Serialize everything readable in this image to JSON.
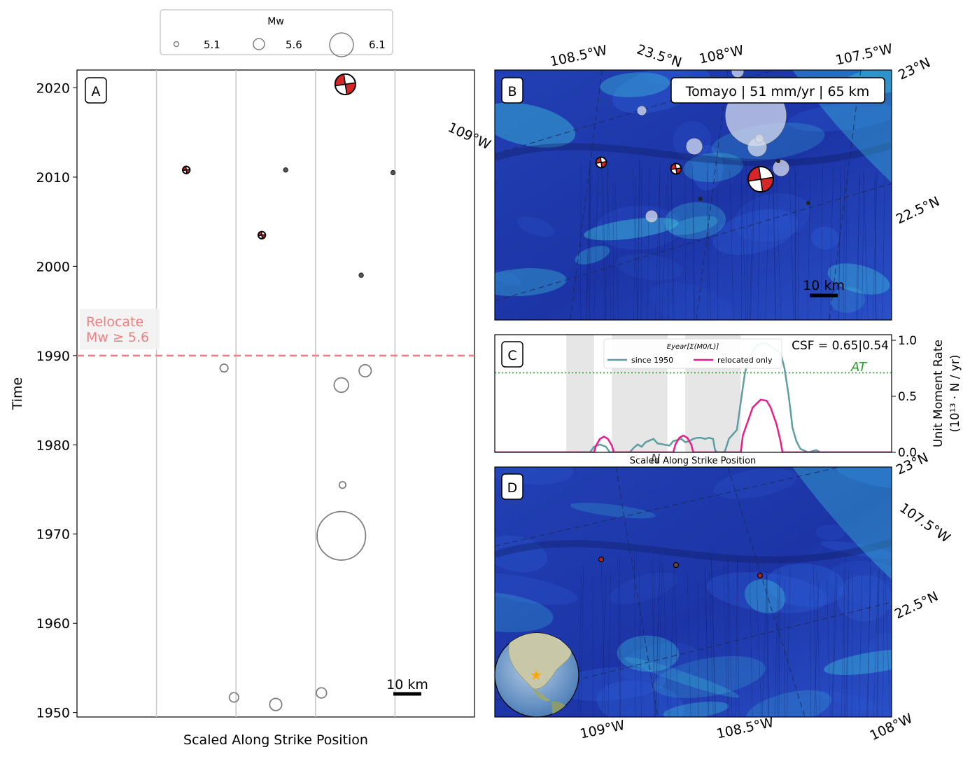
{
  "colors": {
    "relocate_line": "#f08080",
    "since1950": "#5f9ea0",
    "relocated_only": "#e91e8c",
    "threshold": "#2e9a2e",
    "beachball_red": "#d62728",
    "event_gray": "#808080",
    "ocean_deep": "#1a3aa0",
    "ocean_shallow": "#3fd0e0",
    "band_gray": "#e6e6e6"
  },
  "legend_mw": {
    "title": "Mw",
    "entries": [
      "5.1",
      "5.6",
      "6.1"
    ]
  },
  "panels": {
    "a": {
      "letter": "A",
      "relocate_line1": "Relocate",
      "relocate_line2": "Mw ≥ 5.6",
      "scalebar": "10 km"
    },
    "b": {
      "letter": "B",
      "banner": "Tomayo | 51 mm/yr | 65 km",
      "scalebar": "10 km",
      "lon_top": [
        "108.5°W",
        "108°W",
        "107.5°W"
      ],
      "lat_top": "23.5°N",
      "lon_left": "109°W",
      "lat_right": [
        "23°N",
        "22.5°N"
      ]
    },
    "c": {
      "letter": "C",
      "legend_title": "Eyear[Σ(M0/L)]",
      "legend_items": [
        "since 1950",
        "relocated only"
      ],
      "csf": "CSF = 0.65|0.54",
      "threshold_label": "AT",
      "xlabel": "Scaled Along Strike Position",
      "ylabel_line1": "Unit Moment Rate",
      "ylabel_line2": "(10¹³ · N / yr)",
      "stray_label": "N",
      "yticks": [
        "0.0",
        "0.5",
        "1.0"
      ]
    },
    "d": {
      "letter": "D",
      "lat_right": [
        "23°N",
        "22.5°N"
      ],
      "lon_right": "107.5°W",
      "lon_bottom": [
        "109°W",
        "108.5°W",
        "108°W"
      ]
    }
  },
  "chart_data": [
    {
      "type": "scatter",
      "panel": "A",
      "title": "",
      "xlabel": "Scaled Along Strike Position",
      "ylabel": "Time",
      "xlim": [
        0,
        100
      ],
      "ylim": [
        1949.5,
        2022
      ],
      "yticks": [
        1950,
        1960,
        1970,
        1980,
        1990,
        2000,
        2010,
        2020
      ],
      "gridlines_x": [
        20,
        40,
        60,
        80
      ],
      "relocate_threshold_year": 1990,
      "series": [
        {
          "kind": "mechanism",
          "points": [
            {
              "x": 27.5,
              "year": 2010.8,
              "mw": 5.25
            },
            {
              "x": 46.5,
              "year": 2003.5,
              "mw": 5.25
            },
            {
              "x": 67.5,
              "year": 2020.4,
              "mw": 5.85
            }
          ]
        },
        {
          "kind": "dot",
          "points": [
            {
              "x": 52.5,
              "year": 2010.8,
              "mw": 4.7
            },
            {
              "x": 79.5,
              "year": 2010.5,
              "mw": 4.8
            },
            {
              "x": 71.5,
              "year": 1999.0,
              "mw": 4.8
            }
          ]
        },
        {
          "kind": "open",
          "points": [
            {
              "x": 37.0,
              "year": 1988.6,
              "mw": 5.3
            },
            {
              "x": 66.5,
              "year": 1986.7,
              "mw": 5.65
            },
            {
              "x": 72.5,
              "year": 1988.3,
              "mw": 5.55
            },
            {
              "x": 66.8,
              "year": 1975.5,
              "mw": 5.2
            },
            {
              "x": 66.5,
              "year": 1969.8,
              "mw": 6.35
            },
            {
              "x": 39.5,
              "year": 1951.7,
              "mw": 5.4
            },
            {
              "x": 50.0,
              "year": 1950.9,
              "mw": 5.55
            },
            {
              "x": 61.5,
              "year": 1952.2,
              "mw": 5.45
            }
          ]
        }
      ]
    },
    {
      "type": "line",
      "panel": "C",
      "xlabel": "Scaled Along Strike Position",
      "ylabel": "Unit Moment Rate (10^13 · N / yr)",
      "xlim": [
        0,
        100
      ],
      "ylim": [
        0,
        1.05
      ],
      "threshold": 0.71,
      "gray_bands": [
        [
          18,
          25
        ],
        [
          29.5,
          43.5
        ],
        [
          48,
          62
        ]
      ],
      "series": [
        {
          "name": "since 1950",
          "x": [
            0,
            24,
            25,
            26.5,
            28,
            29,
            34,
            35,
            36,
            37,
            38,
            40,
            41,
            44,
            45,
            47,
            48,
            49,
            50,
            51,
            52,
            53,
            54,
            55,
            55.5,
            56,
            57.5,
            58,
            59,
            61,
            62,
            63,
            64,
            64.5,
            65,
            66,
            67,
            68,
            69,
            70,
            71,
            72,
            73,
            74,
            74.5,
            75,
            76,
            77,
            79,
            80,
            81,
            82,
            100
          ],
          "y": [
            0,
            0,
            0.05,
            0.07,
            0.05,
            0,
            0,
            0.04,
            0.07,
            0.05,
            0.09,
            0.12,
            0.08,
            0.06,
            0.1,
            0.12,
            0.09,
            0.1,
            0.12,
            0.13,
            0.13,
            0.12,
            0.13,
            0.12,
            0.02,
            0,
            0,
            0.01,
            0.12,
            0.2,
            0.45,
            0.7,
            0.85,
            0.86,
            0.9,
            0.95,
            0.97,
            0.98,
            0.96,
            0.93,
            0.91,
            0.89,
            0.75,
            0.52,
            0.38,
            0.22,
            0.1,
            0.03,
            0,
            0.01,
            0.02,
            0,
            0
          ]
        },
        {
          "name": "relocated only",
          "x": [
            0,
            25,
            25.5,
            26.5,
            27.5,
            28.5,
            29.5,
            30,
            45,
            45.5,
            46.5,
            47.5,
            48.5,
            49.5,
            50,
            62,
            62.5,
            64,
            65,
            67,
            68.5,
            69.5,
            71,
            72,
            72.5,
            100
          ],
          "y": [
            0,
            0,
            0.06,
            0.12,
            0.14,
            0.12,
            0.06,
            0,
            0,
            0.07,
            0.13,
            0.15,
            0.13,
            0.07,
            0,
            0,
            0.15,
            0.3,
            0.4,
            0.47,
            0.46,
            0.4,
            0.25,
            0.1,
            0,
            0
          ]
        }
      ]
    }
  ]
}
